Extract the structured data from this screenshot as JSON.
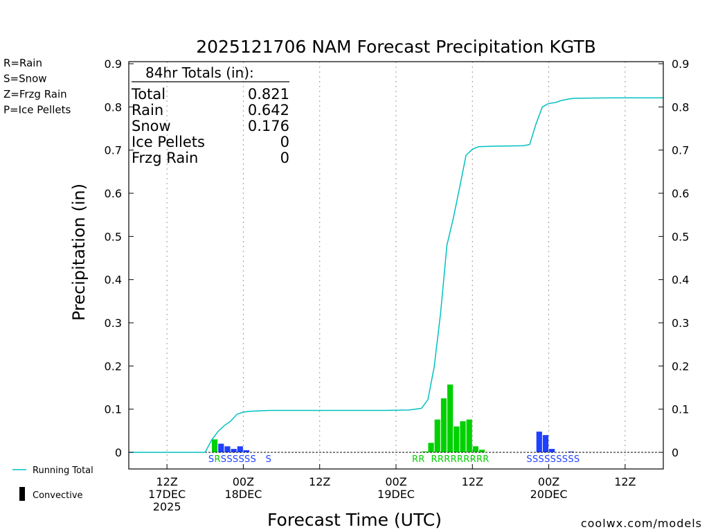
{
  "chart_data": {
    "type": "bar",
    "title": "2025121706 NAM Forecast Precipitation KGTB",
    "xlabel": "Forecast Time (UTC)",
    "ylabel": "Precipitation (in)",
    "ylim": [
      0,
      0.9
    ],
    "y_ticks": [
      "0",
      "0.1",
      "0.2",
      "0.3",
      "0.4",
      "0.5",
      "0.6",
      "0.7",
      "0.8",
      "0.9"
    ],
    "xlim_hours": [
      0,
      84
    ],
    "grid": "vertical dotted every 12 hours",
    "x_ticks": [
      {
        "hour": 6,
        "lines": [
          "12Z",
          "17DEC",
          "2025"
        ]
      },
      {
        "hour": 18,
        "lines": [
          "00Z",
          "18DEC"
        ]
      },
      {
        "hour": 30,
        "lines": [
          "12Z"
        ]
      },
      {
        "hour": 42,
        "lines": [
          "00Z",
          "19DEC"
        ]
      },
      {
        "hour": 54,
        "lines": [
          "12Z"
        ]
      },
      {
        "hour": 66,
        "lines": [
          "00Z",
          "20DEC"
        ]
      },
      {
        "hour": 78,
        "lines": [
          "12Z"
        ]
      }
    ],
    "bar_series": [
      {
        "name": "Rain",
        "color": "#00d000",
        "points": [
          [
            13,
            0.03
          ],
          [
            46,
            0.002
          ],
          [
            47,
            0.022
          ],
          [
            48,
            0.076
          ],
          [
            49,
            0.125
          ],
          [
            50,
            0.157
          ],
          [
            51,
            0.06
          ],
          [
            52,
            0.072
          ],
          [
            53,
            0.076
          ],
          [
            54,
            0.014
          ],
          [
            55,
            0.006
          ]
        ]
      },
      {
        "name": "Snow",
        "color": "#2040ff",
        "points": [
          [
            14,
            0.02
          ],
          [
            15,
            0.014
          ],
          [
            16,
            0.008
          ],
          [
            17,
            0.014
          ],
          [
            18,
            0.005
          ],
          [
            64,
            0.048
          ],
          [
            65,
            0.04
          ],
          [
            66,
            0.008
          ],
          [
            69,
            0.002
          ]
        ]
      }
    ],
    "line_series": {
      "name": "Running Total",
      "color": "#00c0c0",
      "points": [
        [
          0,
          0
        ],
        [
          12,
          0
        ],
        [
          13,
          0.028
        ],
        [
          14,
          0.048
        ],
        [
          15,
          0.062
        ],
        [
          16,
          0.072
        ],
        [
          17,
          0.088
        ],
        [
          18,
          0.093
        ],
        [
          19,
          0.095
        ],
        [
          22,
          0.097
        ],
        [
          30,
          0.097
        ],
        [
          40,
          0.097
        ],
        [
          44,
          0.098
        ],
        [
          45,
          0.1
        ],
        [
          46,
          0.102
        ],
        [
          47,
          0.122
        ],
        [
          48,
          0.198
        ],
        [
          49,
          0.322
        ],
        [
          50,
          0.48
        ],
        [
          51,
          0.542
        ],
        [
          52,
          0.614
        ],
        [
          53,
          0.688
        ],
        [
          54,
          0.702
        ],
        [
          55,
          0.708
        ],
        [
          57,
          0.709
        ],
        [
          62,
          0.71
        ],
        [
          63,
          0.713
        ],
        [
          64,
          0.761
        ],
        [
          65,
          0.8
        ],
        [
          66,
          0.808
        ],
        [
          67,
          0.81
        ],
        [
          68,
          0.815
        ],
        [
          69,
          0.818
        ],
        [
          70,
          0.82
        ],
        [
          76,
          0.821
        ],
        [
          84,
          0.821
        ]
      ]
    },
    "type_labels": [
      {
        "hour": 12.5,
        "text": "SRSSSSSS",
        "colors": [
          "#2040ff",
          "#00d000",
          "#2040ff",
          "#2040ff",
          "#2040ff",
          "#2040ff",
          "#2040ff",
          "#2040ff"
        ]
      },
      {
        "hour": 21.5,
        "text": "S",
        "colors": [
          "#2040ff"
        ]
      },
      {
        "hour": 44.5,
        "text": "RR",
        "colors": [
          "#00d000",
          "#00d000"
        ]
      },
      {
        "hour": 47.5,
        "text": "RRRRRRRRR",
        "colors": [
          "#00d000",
          "#00d000",
          "#00d000",
          "#00d000",
          "#00d000",
          "#00d000",
          "#00d000",
          "#00d000",
          "#00d000"
        ]
      },
      {
        "hour": 62.5,
        "text": "SSSSSSSSS",
        "colors": [
          "#2040ff",
          "#2040ff",
          "#2040ff",
          "#2040ff",
          "#2040ff",
          "#2040ff",
          "#2040ff",
          "#2040ff",
          "#2040ff"
        ]
      }
    ],
    "totals_box": {
      "heading": "84hr Totals (in):",
      "rows": [
        {
          "label": "Total",
          "value": "0.821"
        },
        {
          "label": "Rain",
          "value": "0.642"
        },
        {
          "label": "Snow",
          "value": "0.176"
        },
        {
          "label": "Ice Pellets",
          "value": "0"
        },
        {
          "label": "Frzg Rain",
          "value": "0"
        }
      ]
    },
    "legend_top_left": [
      {
        "text": "R=Rain",
        "color": "#00d000"
      },
      {
        "text": "S=Snow",
        "color": "#2040ff"
      },
      {
        "text": "Z=Frzg Rain",
        "color": "#ff8c1a"
      },
      {
        "text": "P=Ice Pellets",
        "color": "#ff1493"
      }
    ],
    "legend_bottom_left": [
      {
        "text": "Running Total",
        "symbol": "line",
        "color": "#00c0c0"
      },
      {
        "text": "Convective",
        "symbol": "bar",
        "color": "#000000"
      }
    ],
    "footer_credit": "coolwx.com/models",
    "footer_color": "#d01010"
  }
}
